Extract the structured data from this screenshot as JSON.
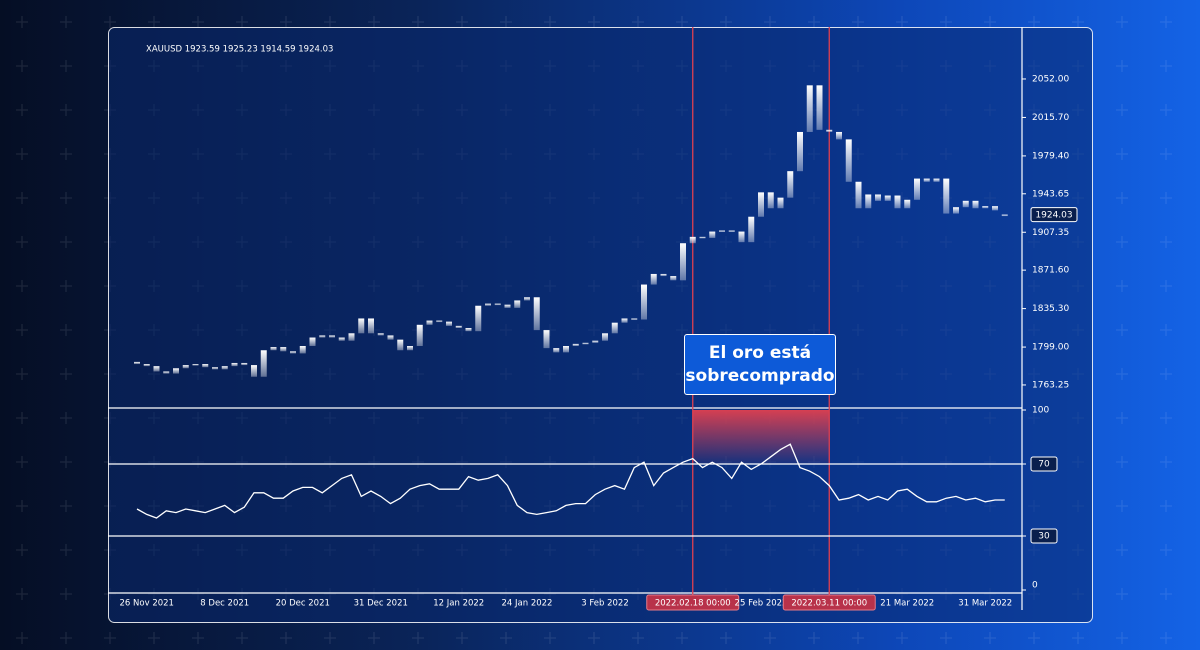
{
  "chart_data": [
    {
      "type": "candlestick",
      "title": "XAUUSD 1923.59 1925.23 1914.59 1924.03",
      "color": "#ffffff",
      "categories": [
        null,
        "26 Nov 2021",
        null,
        null,
        null,
        null,
        null,
        null,
        null,
        "8 Dec 2021",
        null,
        null,
        null,
        null,
        null,
        null,
        null,
        "20 Dec 2021",
        null,
        null,
        null,
        null,
        null,
        null,
        null,
        "31 Dec 2021",
        null,
        null,
        null,
        null,
        null,
        null,
        null,
        "12 Jan 2022",
        null,
        null,
        null,
        null,
        null,
        null,
        "24 Jan 2022",
        null,
        null,
        null,
        null,
        null,
        null,
        null,
        "3 Feb 2022",
        null,
        null,
        null,
        null,
        null,
        null,
        null,
        null,
        "2022.02.18 00:00",
        null,
        null,
        null,
        null,
        null,
        null,
        "25 Feb 2022",
        null,
        null,
        null,
        null,
        null,
        null,
        "2022.03.11 00:00",
        null,
        null,
        null,
        null,
        null,
        null,
        null,
        "21 Mar 2022",
        null,
        null,
        null,
        null,
        null,
        null,
        null,
        "31 Mar 2022",
        null,
        null
      ],
      "open": [
        1785,
        1783,
        1781,
        1776,
        1774,
        1779,
        1782,
        1783,
        1780,
        1778,
        1781,
        1784,
        1782,
        1771,
        1796,
        1799,
        1795,
        1793,
        1800,
        1808,
        1810,
        1808,
        1805,
        1812,
        1826,
        1812,
        1810,
        1806,
        1796,
        1800,
        1820,
        1824,
        1823,
        1819,
        1817,
        1814,
        1838,
        1840,
        1839,
        1836,
        1843,
        1846,
        1815,
        1798,
        1794,
        1800,
        1802,
        1803,
        1805,
        1812,
        1822,
        1826,
        1825,
        1858,
        1868,
        1866,
        1862,
        1897,
        1903,
        1902,
        1908,
        1909,
        1908,
        1898,
        1922,
        1945,
        1930,
        1940,
        1965,
        2002,
        2046,
        2004,
        2002,
        1995,
        1955,
        1930,
        1943,
        1937,
        1942,
        1930,
        1938,
        1958,
        1955,
        1958,
        1925,
        1931,
        1937,
        1930,
        1932,
        1923.59
      ],
      "close": [
        1783,
        1781,
        1776,
        1774,
        1779,
        1782,
        1783,
        1780,
        1778,
        1781,
        1784,
        1782,
        1771,
        1796,
        1799,
        1795,
        1793,
        1800,
        1808,
        1810,
        1808,
        1805,
        1812,
        1826,
        1812,
        1810,
        1806,
        1796,
        1800,
        1820,
        1824,
        1823,
        1819,
        1817,
        1814,
        1838,
        1840,
        1839,
        1836,
        1843,
        1846,
        1815,
        1798,
        1794,
        1800,
        1802,
        1803,
        1805,
        1812,
        1822,
        1826,
        1825,
        1858,
        1868,
        1866,
        1862,
        1897,
        1903,
        1902,
        1908,
        1909,
        1908,
        1898,
        1922,
        1945,
        1930,
        1940,
        1965,
        2002,
        2046,
        2004,
        2002,
        1995,
        1955,
        1930,
        1943,
        1937,
        1942,
        1930,
        1938,
        1958,
        1955,
        1958,
        1925,
        1931,
        1937,
        1930,
        1932,
        1928,
        1924.03
      ],
      "ylim": [
        1741.5,
        2100.1
      ],
      "yticks": [
        {
          "value": 2052,
          "label": "2052.00"
        },
        {
          "value": 2015.7,
          "label": "2015.70"
        },
        {
          "value": 1979.4,
          "label": "1979.40"
        },
        1943.65,
        1907.35,
        {
          "value": 1871.6,
          "label": "1871.60"
        },
        {
          "value": 1835.3,
          "label": "1835.30"
        },
        {
          "value": 1799,
          "label": "1799.00"
        },
        1763.25
      ],
      "highlight": {
        "from": "2022.02.18 00:00",
        "to": "2022.03.11 00:00",
        "label": "El oro está sobrecomprado",
        "color": "#e0404f"
      }
    },
    {
      "type": "line",
      "series": [
        {
          "color": "#ffffff",
          "values": [
            45,
            42,
            40,
            44,
            43,
            45,
            44,
            43,
            45,
            47,
            43,
            46,
            54,
            54,
            51,
            51,
            55,
            57,
            57,
            54,
            58,
            62,
            64,
            52,
            55,
            52,
            48,
            51,
            56,
            58,
            59,
            56,
            56,
            56,
            63,
            61,
            62,
            64,
            58,
            47,
            43,
            42,
            43,
            44,
            47,
            48,
            48,
            53,
            56,
            58,
            56,
            68,
            71,
            58,
            65,
            68,
            71,
            73,
            68,
            71,
            68,
            62,
            71,
            67,
            70,
            74,
            78,
            81,
            68,
            66,
            63,
            58,
            50,
            51,
            53,
            50,
            52,
            50,
            55,
            56,
            52,
            49,
            49,
            51,
            52,
            50,
            51,
            49,
            50,
            50
          ]
        }
      ],
      "ylim": [
        0,
        100
      ],
      "yticks": [
        100,
        70,
        30,
        0
      ],
      "levels": [
        70,
        30
      ]
    }
  ]
}
